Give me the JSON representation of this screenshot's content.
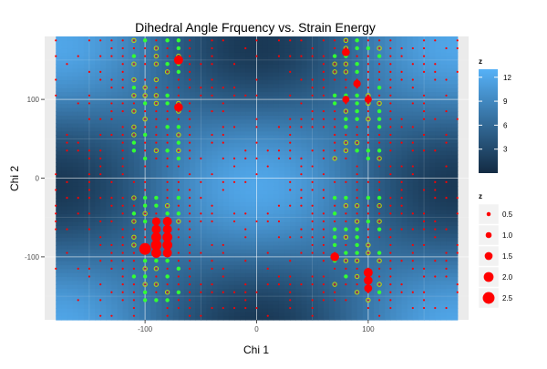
{
  "chart_data": {
    "type": "heatmap",
    "title": "Dihedral Angle Frquency vs. Strain Energy",
    "xlabel": "Chi 1",
    "ylabel": "Chi 2",
    "xlim": [
      -190,
      190
    ],
    "ylim": [
      -180,
      180
    ],
    "x_ticks": [
      -100,
      0,
      100
    ],
    "x_tick_labels": [
      "-100",
      "0",
      "100"
    ],
    "y_ticks": [
      -100,
      0,
      100
    ],
    "y_tick_labels": [
      "-100",
      "0",
      "100"
    ],
    "grid": true,
    "heatmap_extent": {
      "x": [
        -180,
        180
      ],
      "y": [
        -180,
        180
      ]
    },
    "heatmap_model": "z = 6.5 + 5.5*cos(x)*cos(y+10) style periodic surface, wells near (±90, ±90)",
    "colorbar": {
      "title": "z",
      "ticks": [
        3,
        6,
        9,
        12
      ],
      "min": 0,
      "max": 13,
      "low_color": "#132B43",
      "high_color": "#56B1F7"
    },
    "size_legend": {
      "title": "z",
      "values": [
        0.5,
        1.0,
        1.5,
        2.0,
        2.5
      ],
      "labels": [
        "0.5",
        "1.0",
        "1.5",
        "2.0",
        "2.5"
      ],
      "color": "#ff0000"
    },
    "point_colors": {
      "low": "#ff0000",
      "ring": "#c8d400",
      "high": "#33ff33"
    },
    "big_points": [
      {
        "x": -100,
        "y": -90,
        "z": 2.5
      },
      {
        "x": -90,
        "y": -85,
        "z": 2.2
      },
      {
        "x": -90,
        "y": -95,
        "z": 2.0
      },
      {
        "x": -90,
        "y": -75,
        "z": 2.0
      },
      {
        "x": -90,
        "y": -65,
        "z": 1.8
      },
      {
        "x": -90,
        "y": -55,
        "z": 1.6
      },
      {
        "x": -80,
        "y": -55,
        "z": 1.8
      },
      {
        "x": -80,
        "y": -65,
        "z": 1.8
      },
      {
        "x": -80,
        "y": -75,
        "z": 2.0
      },
      {
        "x": -80,
        "y": -85,
        "z": 2.0
      },
      {
        "x": -80,
        "y": -95,
        "z": 1.8
      },
      {
        "x": -70,
        "y": 150,
        "z": 1.8
      },
      {
        "x": -70,
        "y": 90,
        "z": 1.7
      },
      {
        "x": 70,
        "y": -100,
        "z": 1.7
      },
      {
        "x": 100,
        "y": -120,
        "z": 1.8
      },
      {
        "x": 100,
        "y": -130,
        "z": 1.7
      },
      {
        "x": 100,
        "y": -140,
        "z": 1.5
      },
      {
        "x": 80,
        "y": 160,
        "z": 1.5
      },
      {
        "x": 90,
        "y": 120,
        "z": 1.4
      },
      {
        "x": 80,
        "y": 100,
        "z": 1.3
      },
      {
        "x": 100,
        "y": 100,
        "z": 1.3
      }
    ]
  }
}
